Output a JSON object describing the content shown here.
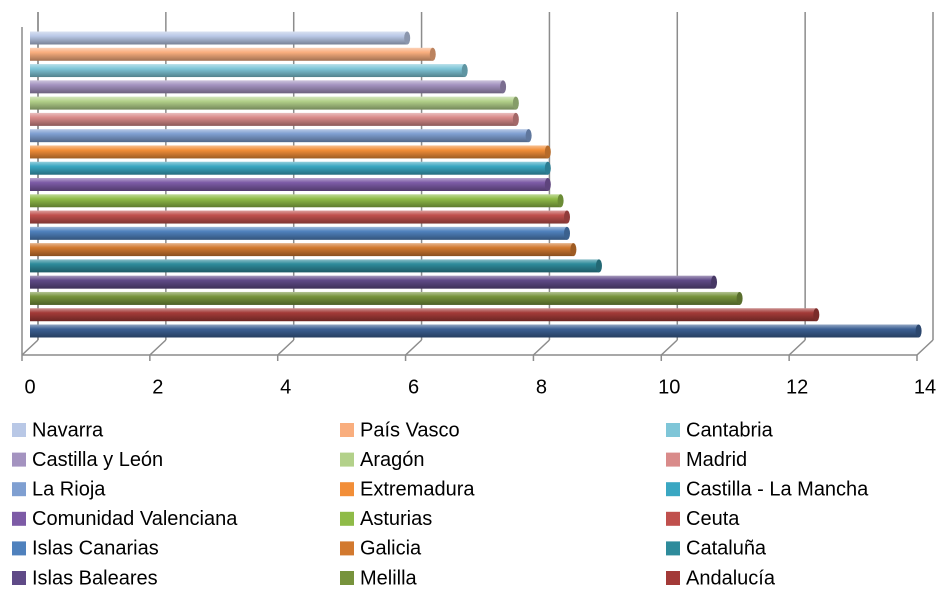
{
  "chart_data": {
    "type": "bar",
    "orientation": "horizontal",
    "xlim": [
      0,
      14
    ],
    "xticks": [
      0,
      2,
      4,
      6,
      8,
      10,
      12,
      14
    ],
    "grid": true,
    "series": [
      {
        "name": "Navarra",
        "color": "#b9c8e6",
        "values": [
          5.9
        ]
      },
      {
        "name": "País Vasco",
        "color": "#f9ae7e",
        "values": [
          6.3
        ]
      },
      {
        "name": "Cantabria",
        "color": "#7fc6d8",
        "values": [
          6.8
        ]
      },
      {
        "name": "Castilla y León",
        "color": "#a493c0",
        "values": [
          7.4
        ]
      },
      {
        "name": "Aragón",
        "color": "#b3d18a",
        "values": [
          7.6
        ]
      },
      {
        "name": "Madrid",
        "color": "#d98b8a",
        "values": [
          7.6
        ]
      },
      {
        "name": "La Rioja",
        "color": "#7f9fd1",
        "values": [
          7.8
        ]
      },
      {
        "name": "Extremadura",
        "color": "#f28e38",
        "values": [
          8.1
        ]
      },
      {
        "name": "Castilla - La Mancha",
        "color": "#3aa7c2",
        "values": [
          8.1
        ]
      },
      {
        "name": "Comunidad Valenciana",
        "color": "#7d5ba6",
        "values": [
          8.1
        ]
      },
      {
        "name": "Asturias",
        "color": "#8fbb48",
        "values": [
          8.3
        ]
      },
      {
        "name": "Ceuta",
        "color": "#c0504d",
        "values": [
          8.4
        ]
      },
      {
        "name": "Islas Canarias",
        "color": "#4f81bd",
        "values": [
          8.4
        ]
      },
      {
        "name": "Galicia",
        "color": "#d2792f",
        "values": [
          8.5
        ]
      },
      {
        "name": "Cataluña",
        "color": "#2e8b9b",
        "values": [
          8.9
        ]
      },
      {
        "name": "Islas Baleares",
        "color": "#5f4a87",
        "values": [
          10.7
        ]
      },
      {
        "name": "Melilla",
        "color": "#77933c",
        "values": [
          11.1
        ]
      },
      {
        "name": "Andalucía",
        "color": "#a33a38",
        "values": [
          12.3
        ]
      },
      {
        "color": "#3b5f93",
        "values": [
          13.9
        ]
      }
    ]
  }
}
